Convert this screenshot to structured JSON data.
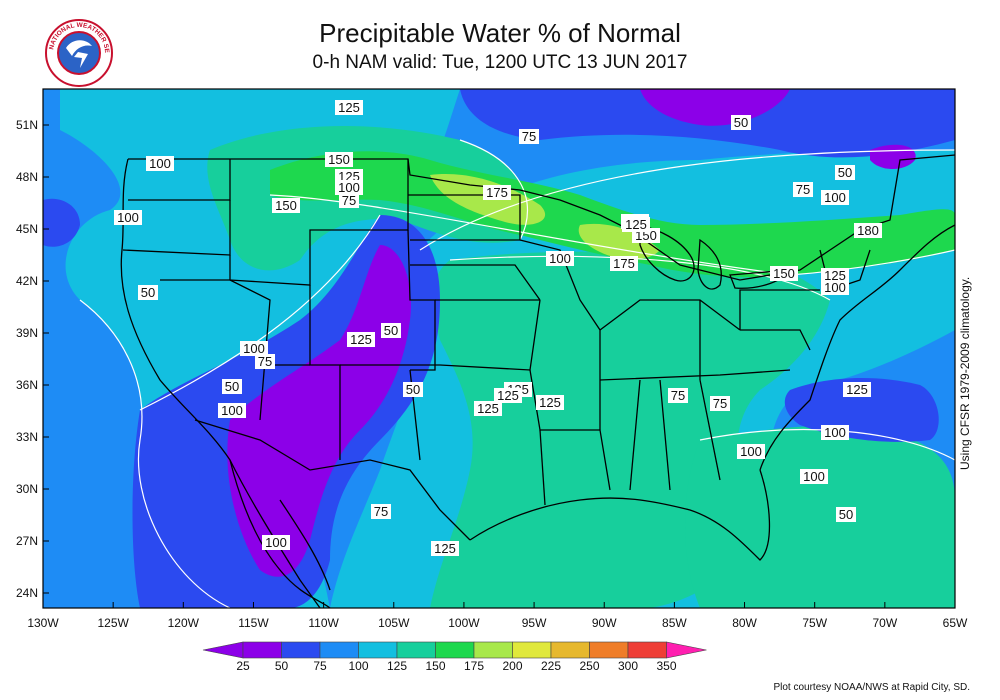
{
  "header": {
    "title": "Precipitable Water % of Normal",
    "subtitle": "0-h NAM valid: Tue, 1200 UTC 13 JUN 2017"
  },
  "logo": {
    "icon": "nws-seal-icon",
    "text": "NATIONAL WEATHER SERVICE"
  },
  "side_note": "Using CFSR 1979-2009 climatology.",
  "credit": "Plot courtesy NOAA/NWS at Rapid City, SD.",
  "lat_labels": [
    "51N",
    "48N",
    "45N",
    "42N",
    "39N",
    "36N",
    "33N",
    "30N",
    "27N",
    "24N"
  ],
  "lon_labels": [
    "130W",
    "125W",
    "120W",
    "115W",
    "110W",
    "105W",
    "100W",
    "95W",
    "90W",
    "85W",
    "80W",
    "75W",
    "70W",
    "65W"
  ],
  "colorbar": {
    "ticks": [
      "25",
      "50",
      "75",
      "100",
      "125",
      "150",
      "175",
      "200",
      "225",
      "250",
      "300",
      "350"
    ],
    "colors": [
      "#8c00e8",
      "#2b4af0",
      "#1e8cf5",
      "#13bfe0",
      "#17cf9c",
      "#1ed84e",
      "#a8e84a",
      "#e0e83c",
      "#e6b82e",
      "#ef7d28",
      "#ee3e36",
      "#ff1fb0"
    ]
  },
  "contour_labels": [
    "125",
    "75",
    "50",
    "150",
    "125",
    "100",
    "75",
    "175",
    "50",
    "100",
    "75",
    "100",
    "100",
    "150",
    "125",
    "150",
    "180",
    "125",
    "175",
    "150",
    "125",
    "100",
    "100",
    "50",
    "50",
    "125",
    "100",
    "75",
    "50",
    "50",
    "100",
    "125",
    "125",
    "125",
    "125",
    "75",
    "75",
    "125",
    "100",
    "100",
    "100",
    "50",
    "75",
    "125",
    "100"
  ]
}
